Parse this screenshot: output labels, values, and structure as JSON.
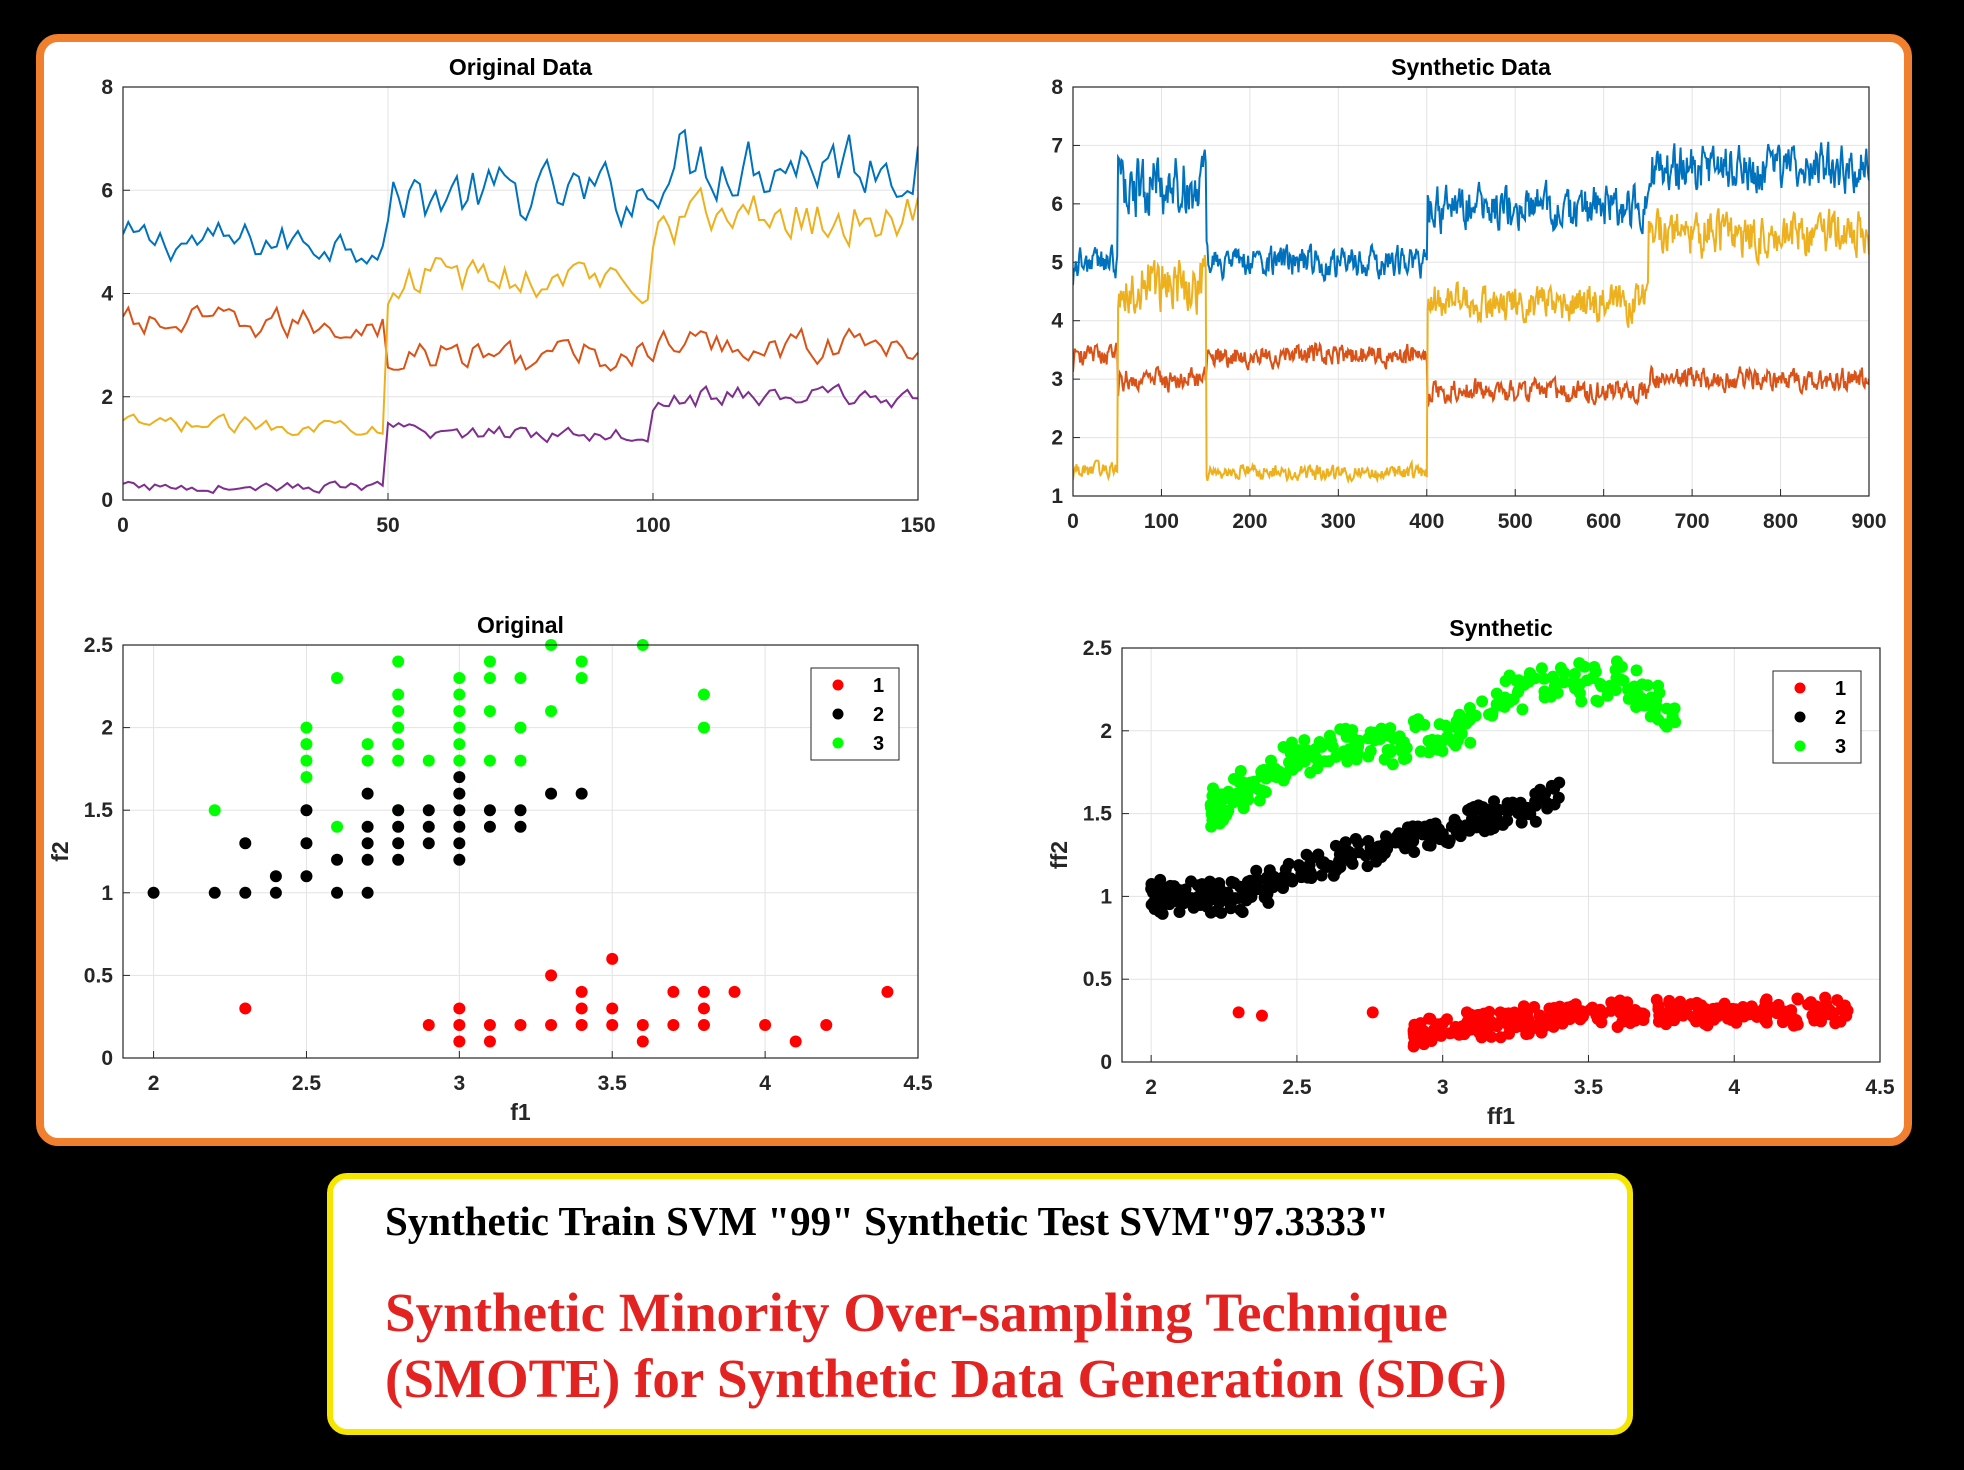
{
  "colors": {
    "panel_border": "#f07f2e",
    "caption_border": "#f5e600",
    "caption_red": "#e32222",
    "series": [
      "#0072bd",
      "#d95319",
      "#edb120",
      "#7e2f8e"
    ],
    "classes": [
      "#ff0000",
      "#000000",
      "#00ff00"
    ]
  },
  "caption": {
    "line1": "Synthetic Train SVM \"99\" Synthetic Test SVM\"97.3333\"",
    "line2": "Synthetic Minority Over-sampling Technique",
    "line3": "(SMOTE) for Synthetic Data Generation (SDG)"
  },
  "chart_data": [
    {
      "type": "line",
      "title": "Original Data",
      "xlabel": "",
      "ylabel": "",
      "xlim": [
        0,
        150
      ],
      "ylim": [
        0,
        8
      ],
      "xticks": [
        0,
        50,
        100,
        150
      ],
      "yticks": [
        0,
        2,
        4,
        6,
        8
      ],
      "grid": true,
      "length": 150,
      "series": [
        {
          "segments": [
            {
              "mean": 5.0,
              "spread": 0.6
            },
            {
              "mean": 5.9,
              "spread": 0.9
            },
            {
              "mean": 6.6,
              "spread": 1.1
            }
          ]
        },
        {
          "segments": [
            {
              "mean": 3.4,
              "spread": 0.5
            },
            {
              "mean": 2.8,
              "spread": 0.5
            },
            {
              "mean": 3.0,
              "spread": 0.5
            }
          ]
        },
        {
          "segments": [
            {
              "mean": 1.45,
              "spread": 0.25
            },
            {
              "mean": 4.3,
              "spread": 0.6
            },
            {
              "mean": 5.5,
              "spread": 0.8
            }
          ]
        },
        {
          "segments": [
            {
              "mean": 0.25,
              "spread": 0.15
            },
            {
              "mean": 1.3,
              "spread": 0.25
            },
            {
              "mean": 2.0,
              "spread": 0.35
            }
          ]
        }
      ]
    },
    {
      "type": "line",
      "title": "Synthetic Data",
      "xlabel": "",
      "ylabel": "",
      "xlim": [
        0,
        900
      ],
      "ylim": [
        1,
        8
      ],
      "xticks": [
        0,
        100,
        200,
        300,
        400,
        500,
        600,
        700,
        800,
        900
      ],
      "yticks": [
        1,
        2,
        3,
        4,
        5,
        6,
        7,
        8
      ],
      "grid": true,
      "length": 900,
      "series": [
        {
          "segments": [
            {
              "end": 50,
              "mean": 5.0,
              "spread": 0.4
            },
            {
              "end": 150,
              "mean": 6.3,
              "spread": 0.8
            },
            {
              "end": 400,
              "mean": 5.0,
              "spread": 0.4
            },
            {
              "end": 650,
              "mean": 5.9,
              "spread": 0.6
            },
            {
              "end": 900,
              "mean": 6.6,
              "spread": 0.6
            }
          ]
        },
        {
          "segments": [
            {
              "end": 50,
              "mean": 3.4,
              "spread": 0.3
            },
            {
              "end": 150,
              "mean": 3.0,
              "spread": 0.3
            },
            {
              "end": 400,
              "mean": 3.4,
              "spread": 0.3
            },
            {
              "end": 650,
              "mean": 2.8,
              "spread": 0.3
            },
            {
              "end": 900,
              "mean": 3.0,
              "spread": 0.3
            }
          ]
        },
        {
          "segments": [
            {
              "end": 50,
              "mean": 1.45,
              "spread": 0.2
            },
            {
              "end": 150,
              "mean": 4.6,
              "spread": 0.7
            },
            {
              "end": 400,
              "mean": 1.4,
              "spread": 0.2
            },
            {
              "end": 650,
              "mean": 4.3,
              "spread": 0.5
            },
            {
              "end": 900,
              "mean": 5.5,
              "spread": 0.6
            }
          ]
        }
      ]
    },
    {
      "type": "scatter",
      "title": "Original",
      "xlabel": "f1",
      "ylabel": "f2",
      "xlim": [
        1.9,
        4.5
      ],
      "ylim": [
        0,
        2.5
      ],
      "xticks": [
        2,
        2.5,
        3,
        3.5,
        4,
        4.5
      ],
      "yticks": [
        0,
        0.5,
        1,
        1.5,
        2,
        2.5
      ],
      "grid": true,
      "legend": {
        "placement": "top-right",
        "entries": [
          "1",
          "2",
          "3"
        ]
      },
      "series": [
        {
          "name": "1",
          "points": [
            [
              2.3,
              0.3
            ],
            [
              2.9,
              0.2
            ],
            [
              3.0,
              0.1
            ],
            [
              3.0,
              0.2
            ],
            [
              3.0,
              0.3
            ],
            [
              3.1,
              0.1
            ],
            [
              3.1,
              0.2
            ],
            [
              3.2,
              0.2
            ],
            [
              3.3,
              0.2
            ],
            [
              3.3,
              0.5
            ],
            [
              3.4,
              0.2
            ],
            [
              3.4,
              0.3
            ],
            [
              3.4,
              0.4
            ],
            [
              3.5,
              0.2
            ],
            [
              3.5,
              0.3
            ],
            [
              3.5,
              0.6
            ],
            [
              3.6,
              0.1
            ],
            [
              3.6,
              0.2
            ],
            [
              3.7,
              0.2
            ],
            [
              3.7,
              0.4
            ],
            [
              3.8,
              0.2
            ],
            [
              3.8,
              0.3
            ],
            [
              3.8,
              0.4
            ],
            [
              3.9,
              0.4
            ],
            [
              4.0,
              0.2
            ],
            [
              4.1,
              0.1
            ],
            [
              4.2,
              0.2
            ],
            [
              4.4,
              0.4
            ]
          ]
        },
        {
          "name": "2",
          "points": [
            [
              2.0,
              1.0
            ],
            [
              2.2,
              1.0
            ],
            [
              2.3,
              1.0
            ],
            [
              2.3,
              1.3
            ],
            [
              2.4,
              1.0
            ],
            [
              2.4,
              1.1
            ],
            [
              2.5,
              1.1
            ],
            [
              2.5,
              1.3
            ],
            [
              2.5,
              1.5
            ],
            [
              2.6,
              1.0
            ],
            [
              2.6,
              1.2
            ],
            [
              2.7,
              1.0
            ],
            [
              2.7,
              1.2
            ],
            [
              2.7,
              1.3
            ],
            [
              2.7,
              1.4
            ],
            [
              2.7,
              1.6
            ],
            [
              2.8,
              1.2
            ],
            [
              2.8,
              1.3
            ],
            [
              2.8,
              1.4
            ],
            [
              2.8,
              1.5
            ],
            [
              2.9,
              1.3
            ],
            [
              2.9,
              1.4
            ],
            [
              2.9,
              1.5
            ],
            [
              3.0,
              1.2
            ],
            [
              3.0,
              1.3
            ],
            [
              3.0,
              1.4
            ],
            [
              3.0,
              1.5
            ],
            [
              3.0,
              1.6
            ],
            [
              3.0,
              1.7
            ],
            [
              3.1,
              1.4
            ],
            [
              3.1,
              1.5
            ],
            [
              3.2,
              1.4
            ],
            [
              3.2,
              1.5
            ],
            [
              3.3,
              1.6
            ],
            [
              3.4,
              1.6
            ]
          ]
        },
        {
          "name": "3",
          "points": [
            [
              2.2,
              1.5
            ],
            [
              2.5,
              1.7
            ],
            [
              2.5,
              1.8
            ],
            [
              2.5,
              1.9
            ],
            [
              2.5,
              2.0
            ],
            [
              2.6,
              1.4
            ],
            [
              2.6,
              2.3
            ],
            [
              2.7,
              1.8
            ],
            [
              2.7,
              1.9
            ],
            [
              2.8,
              1.5
            ],
            [
              2.8,
              1.8
            ],
            [
              2.8,
              1.9
            ],
            [
              2.8,
              2.0
            ],
            [
              2.8,
              2.1
            ],
            [
              2.8,
              2.2
            ],
            [
              2.8,
              2.4
            ],
            [
              2.9,
              1.8
            ],
            [
              3.0,
              1.6
            ],
            [
              3.0,
              1.8
            ],
            [
              3.0,
              1.9
            ],
            [
              3.0,
              2.0
            ],
            [
              3.0,
              2.1
            ],
            [
              3.0,
              2.2
            ],
            [
              3.0,
              2.3
            ],
            [
              3.1,
              1.8
            ],
            [
              3.1,
              2.1
            ],
            [
              3.1,
              2.3
            ],
            [
              3.1,
              2.4
            ],
            [
              3.2,
              1.8
            ],
            [
              3.2,
              2.0
            ],
            [
              3.2,
              2.3
            ],
            [
              3.3,
              2.1
            ],
            [
              3.3,
              2.5
            ],
            [
              3.4,
              2.3
            ],
            [
              3.4,
              2.4
            ],
            [
              3.6,
              2.5
            ],
            [
              3.8,
              2.0
            ],
            [
              3.8,
              2.2
            ]
          ]
        }
      ]
    },
    {
      "type": "scatter",
      "title": "Synthetic",
      "xlabel": "ff1",
      "ylabel": "ff2",
      "xlim": [
        1.9,
        4.5
      ],
      "ylim": [
        0,
        2.5
      ],
      "xticks": [
        2,
        2.5,
        3,
        3.5,
        4,
        4.5
      ],
      "yticks": [
        0,
        0.5,
        1,
        1.5,
        2,
        2.5
      ],
      "grid": true,
      "legend": {
        "placement": "top-right",
        "entries": [
          "1",
          "2",
          "3"
        ]
      },
      "generated": [
        {
          "name": "1",
          "count": 300,
          "x": [
            2.9,
            4.4
          ],
          "trend": [
            [
              2.9,
              0.18
            ],
            [
              3.3,
              0.25
            ],
            [
              3.5,
              0.3
            ],
            [
              4.4,
              0.3
            ]
          ],
          "spread": 0.1,
          "extra": [
            [
              2.3,
              0.3
            ],
            [
              2.38,
              0.28
            ],
            [
              2.76,
              0.3
            ]
          ]
        },
        {
          "name": "2",
          "count": 300,
          "x": [
            2.0,
            3.4
          ],
          "trend": [
            [
              2.0,
              1.0
            ],
            [
              2.3,
              1.0
            ],
            [
              2.5,
              1.15
            ],
            [
              2.8,
              1.3
            ],
            [
              3.0,
              1.4
            ],
            [
              3.4,
              1.6
            ]
          ],
          "spread": 0.12,
          "extra": []
        },
        {
          "name": "3",
          "count": 300,
          "x": [
            2.2,
            3.8
          ],
          "trend": [
            [
              2.2,
              1.5
            ],
            [
              2.5,
              1.85
            ],
            [
              3.0,
              1.95
            ],
            [
              3.3,
              2.3
            ],
            [
              3.6,
              2.3
            ],
            [
              3.8,
              2.1
            ]
          ],
          "spread": 0.15,
          "extra": []
        }
      ]
    }
  ]
}
